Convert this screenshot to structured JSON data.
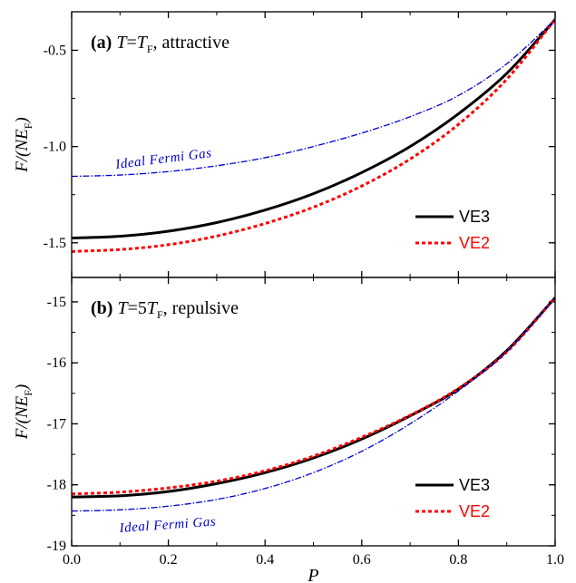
{
  "colors": {
    "VE3": "#000000",
    "VE2": "#ff0000",
    "ideal": "#0000cc"
  },
  "chart_data": [
    {
      "type": "line",
      "panel": "a",
      "title_parts": {
        "label": "(a)",
        "var": "T",
        "eq": "=",
        "var2": "T",
        "sub": "F",
        "rest": ", attractive"
      },
      "xlabel": "P",
      "ylabel": {
        "main": "F/(NE",
        "sub": "F",
        "close": ")"
      },
      "xlim": [
        0,
        1
      ],
      "ylim": [
        -1.68,
        -0.3
      ],
      "yticks": [
        "-1.5",
        "-1.0",
        "-0.5"
      ],
      "ytick_values": [
        -1.5,
        -1.0,
        -0.5
      ],
      "legend_position": "bottom-right",
      "annotation": "Ideal  Fermi  Gas",
      "series": [
        {
          "name": "VE3",
          "style": "solid",
          "x": [
            0.0,
            0.1,
            0.2,
            0.3,
            0.4,
            0.5,
            0.6,
            0.7,
            0.8,
            0.9,
            1.0
          ],
          "y": [
            -1.475,
            -1.466,
            -1.44,
            -1.395,
            -1.33,
            -1.245,
            -1.135,
            -1.0,
            -0.83,
            -0.62,
            -0.34
          ]
        },
        {
          "name": "VE2",
          "style": "dashed",
          "x": [
            0.0,
            0.1,
            0.2,
            0.3,
            0.4,
            0.5,
            0.6,
            0.7,
            0.8,
            0.9,
            1.0
          ],
          "y": [
            -1.545,
            -1.535,
            -1.51,
            -1.465,
            -1.4,
            -1.315,
            -1.205,
            -1.065,
            -0.885,
            -0.65,
            -0.34
          ]
        },
        {
          "name": "Ideal Fermi Gas",
          "style": "dashdot",
          "x": [
            0.0,
            0.1,
            0.2,
            0.3,
            0.4,
            0.5,
            0.6,
            0.7,
            0.8,
            0.9,
            1.0
          ],
          "y": [
            -1.155,
            -1.148,
            -1.13,
            -1.1,
            -1.058,
            -1.0,
            -0.93,
            -0.845,
            -0.735,
            -0.57,
            -0.34
          ]
        }
      ]
    },
    {
      "type": "line",
      "panel": "b",
      "title_parts": {
        "label": "(b)",
        "var": "T",
        "eq": "=5",
        "var2": "T",
        "sub": "F",
        "rest": ", repulsive"
      },
      "xlabel": "P",
      "ylabel": {
        "main": "F/(NE",
        "sub": "F",
        "close": ")"
      },
      "xlim": [
        0,
        1
      ],
      "ylim": [
        -19,
        -14.6
      ],
      "yticks": [
        "-19",
        "-18",
        "-17",
        "-16",
        "-15"
      ],
      "ytick_values": [
        -19,
        -18,
        -17,
        -16,
        -15
      ],
      "xticks": [
        "0.0",
        "0.2",
        "0.4",
        "0.6",
        "0.8",
        "1.0"
      ],
      "xtick_values": [
        0,
        0.2,
        0.4,
        0.6,
        0.8,
        1.0
      ],
      "legend_position": "bottom-right",
      "annotation": "Ideal  Fermi  Gas",
      "series": [
        {
          "name": "VE3",
          "style": "solid",
          "x": [
            0.0,
            0.1,
            0.2,
            0.3,
            0.4,
            0.5,
            0.6,
            0.7,
            0.8,
            0.9,
            1.0
          ],
          "y": [
            -18.2,
            -18.18,
            -18.11,
            -17.98,
            -17.8,
            -17.56,
            -17.25,
            -16.87,
            -16.43,
            -15.8,
            -14.93
          ]
        },
        {
          "name": "VE2",
          "style": "dashed",
          "x": [
            0.0,
            0.1,
            0.2,
            0.3,
            0.4,
            0.5,
            0.6,
            0.7,
            0.8,
            0.9,
            1.0
          ],
          "y": [
            -18.15,
            -18.12,
            -18.05,
            -17.94,
            -17.77,
            -17.53,
            -17.22,
            -16.86,
            -16.42,
            -15.82,
            -14.93
          ]
        },
        {
          "name": "Ideal Fermi Gas",
          "style": "dashdot",
          "x": [
            0.0,
            0.1,
            0.2,
            0.3,
            0.4,
            0.5,
            0.6,
            0.7,
            0.8,
            0.9,
            1.0
          ],
          "y": [
            -18.43,
            -18.41,
            -18.35,
            -18.24,
            -18.06,
            -17.8,
            -17.45,
            -17.0,
            -16.46,
            -15.82,
            -14.93
          ]
        }
      ]
    }
  ]
}
